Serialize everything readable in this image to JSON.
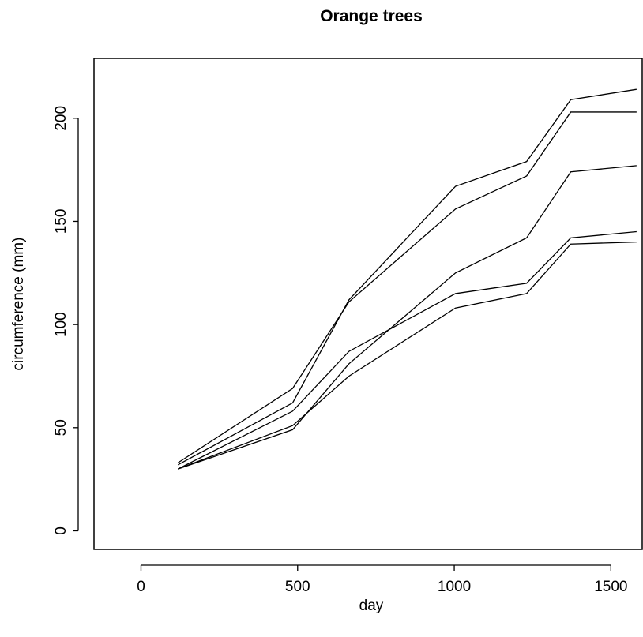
{
  "chart_data": {
    "type": "line",
    "title": "Orange trees",
    "xlabel": "day",
    "ylabel": "circumference (mm)",
    "xlim": [
      -150,
      1600
    ],
    "ylim": [
      -9,
      229
    ],
    "xticks": [
      0,
      500,
      1000,
      1500
    ],
    "yticks": [
      0,
      50,
      100,
      150,
      200
    ],
    "grid": false,
    "x": [
      118,
      484,
      664,
      1004,
      1231,
      1372,
      1582
    ],
    "series": [
      {
        "values": [
          30,
          58,
          87,
          115,
          120,
          142,
          145
        ]
      },
      {
        "values": [
          33,
          69,
          111,
          156,
          172,
          203,
          203
        ]
      },
      {
        "values": [
          30,
          51,
          75,
          108,
          115,
          139,
          140
        ]
      },
      {
        "values": [
          32,
          62,
          112,
          167,
          179,
          209,
          214
        ]
      },
      {
        "values": [
          30,
          49,
          81,
          125,
          142,
          174,
          177
        ]
      }
    ]
  }
}
